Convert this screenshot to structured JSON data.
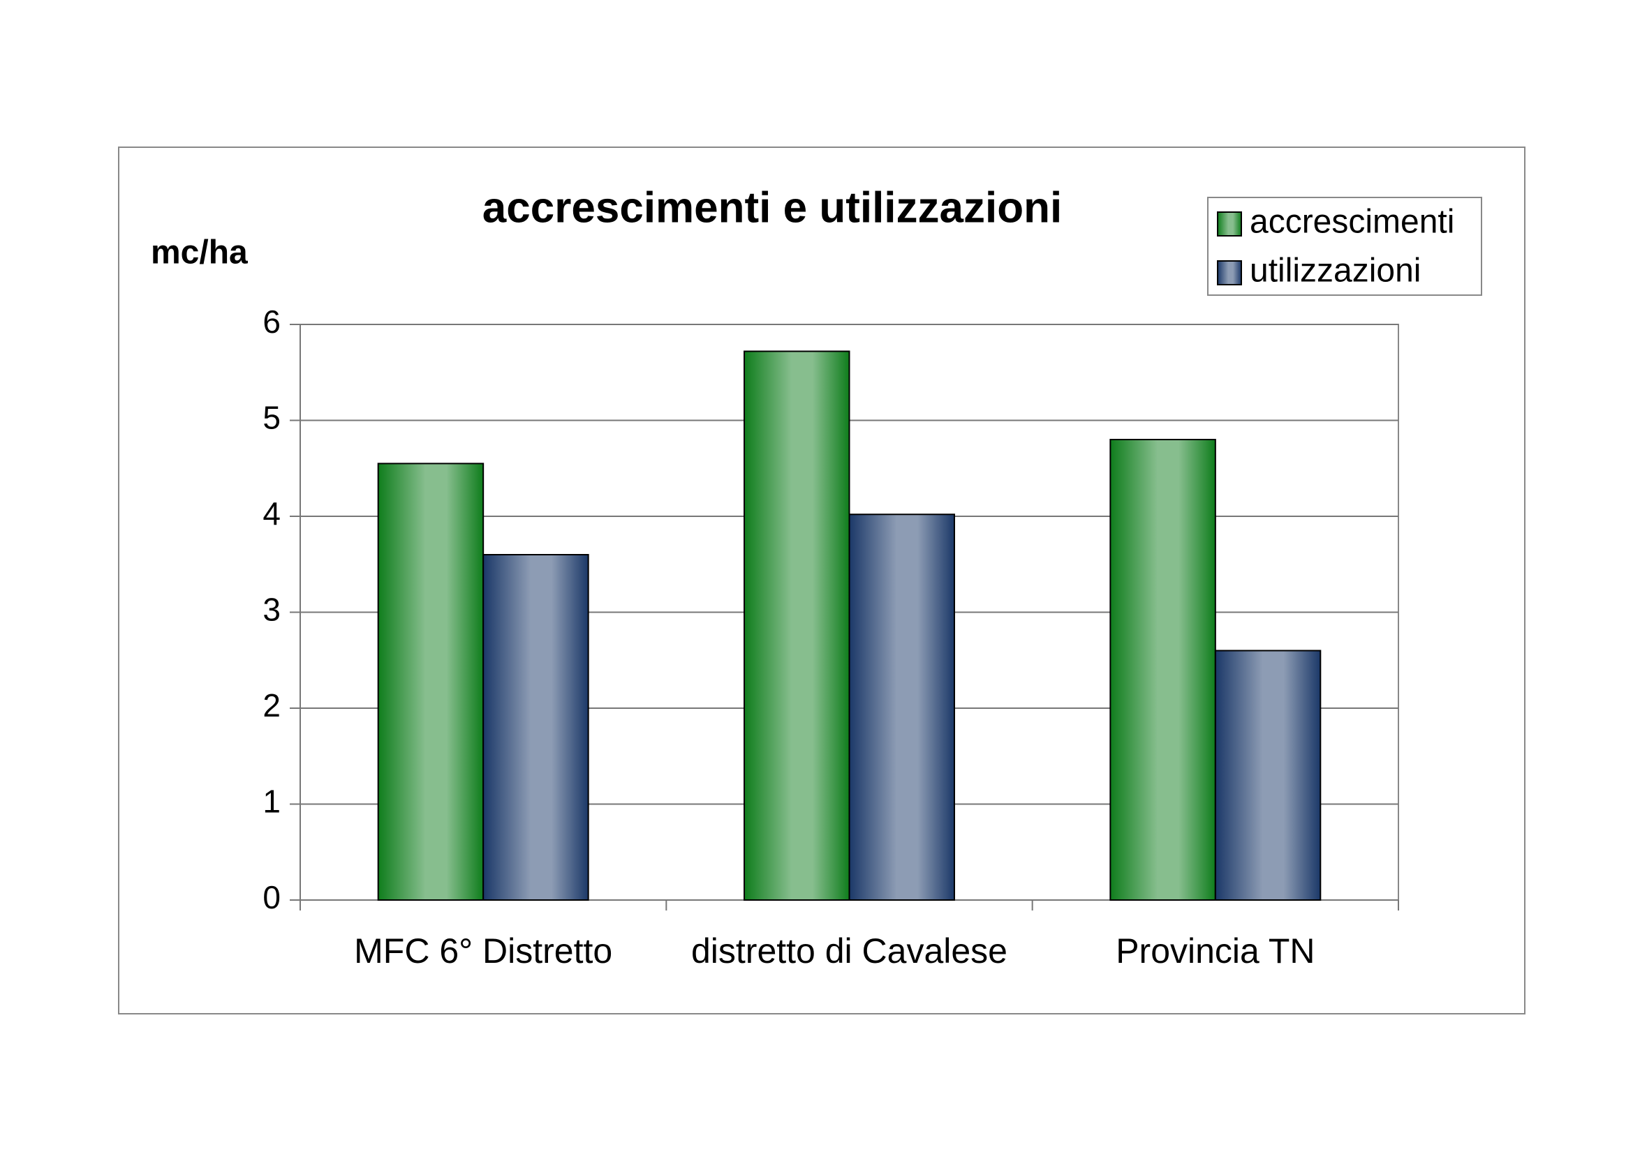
{
  "chart_data": {
    "type": "bar",
    "title": "accrescimenti e utilizzazioni",
    "y_label": "mc/ha",
    "categories": [
      "MFC 6° Distretto",
      "distretto di Cavalese",
      "Provincia TN"
    ],
    "series": [
      {
        "name": "accrescimenti",
        "color": "#0f7d1c",
        "values": [
          4.55,
          5.72,
          4.8
        ]
      },
      {
        "name": "utilizzazioni",
        "color": "#1b3868",
        "values": [
          3.6,
          4.02,
          2.6
        ]
      }
    ],
    "ylim": [
      0,
      6
    ],
    "yticks": [
      0,
      1,
      2,
      3,
      4,
      5,
      6
    ],
    "grid": true,
    "legend": "top-right"
  }
}
